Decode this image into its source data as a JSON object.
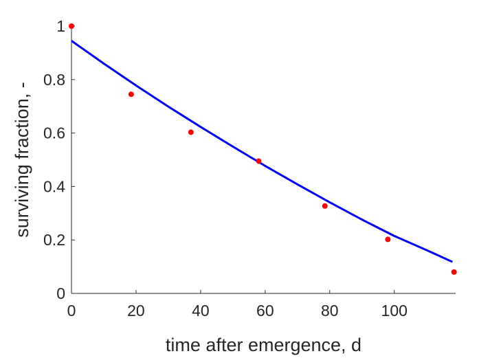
{
  "chart_data": {
    "type": "scatter",
    "title": "",
    "xlabel": "time after emergence, d",
    "ylabel": "surviving fraction, -",
    "xlim": [
      0,
      119
    ],
    "ylim": [
      0,
      1
    ],
    "x_ticks": [
      0,
      20,
      40,
      60,
      80,
      100
    ],
    "y_ticks": [
      0,
      0.2,
      0.4,
      0.6,
      0.8,
      1
    ],
    "y_tick_labels": [
      "0",
      "0.2",
      "0.4",
      "0.6",
      "0.8",
      "1"
    ],
    "grid": false,
    "legend": "none",
    "series": [
      {
        "kind": "points",
        "color": "#ff0000",
        "x": [
          0,
          18.5,
          37,
          58,
          78.5,
          98,
          118.5
        ],
        "y": [
          1.0,
          0.745,
          0.603,
          0.495,
          0.327,
          0.202,
          0.08
        ]
      },
      {
        "kind": "line",
        "color": "#0000ff",
        "x": [
          0,
          10,
          20,
          30,
          40,
          50,
          60,
          70,
          80,
          90,
          100,
          110,
          118
        ],
        "y": [
          0.945,
          0.86,
          0.778,
          0.699,
          0.623,
          0.549,
          0.477,
          0.408,
          0.341,
          0.276,
          0.215,
          0.162,
          0.118
        ]
      }
    ]
  }
}
